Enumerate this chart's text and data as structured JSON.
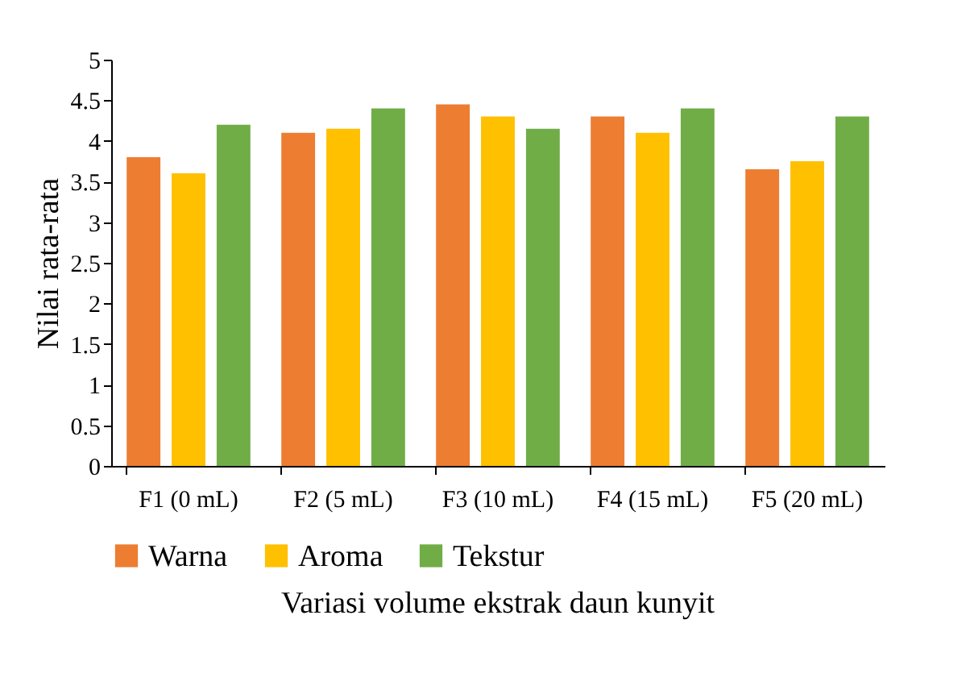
{
  "chart_data": {
    "type": "bar",
    "xlabel": "Variasi volume ekstrak daun kunyit",
    "ylabel": "Nilai rata-rata",
    "categories": [
      "F1 (0 mL)",
      "F2 (5 mL)",
      "F3 (10 mL)",
      "F4 (15 mL)",
      "F5 (20 mL)"
    ],
    "series": [
      {
        "name": "Warna",
        "color": "#ed7d31",
        "values": [
          3.8,
          4.1,
          4.45,
          4.3,
          3.65
        ]
      },
      {
        "name": "Aroma",
        "color": "#ffc000",
        "values": [
          3.6,
          4.15,
          4.3,
          4.1,
          3.75
        ]
      },
      {
        "name": "Tekstur",
        "color": "#70ad47",
        "values": [
          4.2,
          4.4,
          4.15,
          4.4,
          4.3
        ]
      }
    ],
    "ylim": [
      0,
      5
    ],
    "yticks": [
      0,
      0.5,
      1,
      1.5,
      2,
      2.5,
      3,
      3.5,
      4,
      4.5,
      5
    ],
    "grid": false,
    "legend": "bottom"
  }
}
